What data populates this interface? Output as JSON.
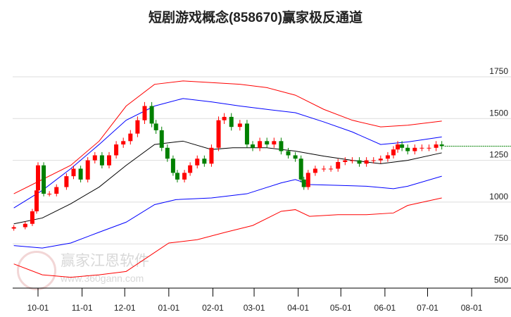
{
  "title": "短剧游戏概念(858670)赢家极反通道",
  "watermark": {
    "text": "赢家江恩软件",
    "url": "www.360gann.com",
    "seal": "江赢恩家"
  },
  "colors": {
    "up": "#ff0000",
    "down": "#008000",
    "mid": "#000000",
    "inner": "#0000ff",
    "outer": "#ff0000",
    "grid": "#dddddd"
  },
  "chart_data": {
    "type": "candlestick",
    "title": "短剧游戏概念(858670)赢家极反通道",
    "x_unit": "days since 10-01",
    "xticks": [
      {
        "label": "10-01",
        "d": 0
      },
      {
        "label": "11-01",
        "d": 31
      },
      {
        "label": "12-01",
        "d": 61
      },
      {
        "label": "01-01",
        "d": 92
      },
      {
        "label": "02-01",
        "d": 123
      },
      {
        "label": "03-01",
        "d": 152
      },
      {
        "label": "04-01",
        "d": 183
      },
      {
        "label": "05-01",
        "d": 213
      },
      {
        "label": "06-01",
        "d": 244
      },
      {
        "label": "07-01",
        "d": 274
      },
      {
        "label": "08-01",
        "d": 305
      }
    ],
    "yticks": [
      1750,
      1500,
      1250,
      1000,
      750,
      500
    ],
    "ylim": [
      490,
      1850
    ],
    "grid": true,
    "last_price": 1335,
    "closes": [
      [
        -17,
        850
      ],
      [
        -9,
        870
      ],
      [
        -4,
        945
      ],
      [
        -1,
        1070
      ],
      [
        0,
        1220
      ],
      [
        4,
        1050
      ],
      [
        8,
        1050
      ],
      [
        13,
        1090
      ],
      [
        20,
        1155
      ],
      [
        25,
        1200
      ],
      [
        30,
        1135
      ],
      [
        35,
        1250
      ],
      [
        40,
        1280
      ],
      [
        45,
        1220
      ],
      [
        50,
        1280
      ],
      [
        55,
        1345
      ],
      [
        60,
        1365
      ],
      [
        65,
        1410
      ],
      [
        70,
        1490
      ],
      [
        75,
        1575
      ],
      [
        80,
        1470
      ],
      [
        83,
        1430
      ],
      [
        87,
        1325
      ],
      [
        91,
        1260
      ],
      [
        95,
        1175
      ],
      [
        98,
        1135
      ],
      [
        103,
        1175
      ],
      [
        107,
        1220
      ],
      [
        112,
        1260
      ],
      [
        117,
        1230
      ],
      [
        122,
        1325
      ],
      [
        127,
        1490
      ],
      [
        131,
        1510
      ],
      [
        136,
        1450
      ],
      [
        142,
        1470
      ],
      [
        147,
        1345
      ],
      [
        151,
        1325
      ],
      [
        156,
        1365
      ],
      [
        161,
        1345
      ],
      [
        166,
        1365
      ],
      [
        171,
        1305
      ],
      [
        176,
        1280
      ],
      [
        181,
        1260
      ],
      [
        185,
        1135
      ],
      [
        187,
        1090
      ],
      [
        190,
        1175
      ],
      [
        195,
        1200
      ],
      [
        201,
        1200
      ],
      [
        206,
        1200
      ],
      [
        211,
        1240
      ],
      [
        216,
        1250
      ],
      [
        221,
        1250
      ],
      [
        226,
        1230
      ],
      [
        231,
        1250
      ],
      [
        236,
        1250
      ],
      [
        241,
        1260
      ],
      [
        246,
        1280
      ],
      [
        250,
        1315
      ],
      [
        253,
        1345
      ],
      [
        256,
        1325
      ],
      [
        260,
        1305
      ],
      [
        265,
        1325
      ],
      [
        270,
        1325
      ],
      [
        275,
        1325
      ],
      [
        280,
        1345
      ],
      [
        284,
        1335
      ]
    ],
    "bands": [
      {
        "name": "outer-upper",
        "color": "outer",
        "points": [
          [
            -17,
            1050
          ],
          [
            3,
            1135
          ],
          [
            23,
            1220
          ],
          [
            43,
            1365
          ],
          [
            62,
            1575
          ],
          [
            82,
            1705
          ],
          [
            102,
            1725
          ],
          [
            122,
            1715
          ],
          [
            142,
            1705
          ],
          [
            161,
            1685
          ],
          [
            181,
            1640
          ],
          [
            201,
            1555
          ],
          [
            221,
            1490
          ],
          [
            241,
            1450
          ],
          [
            260,
            1460
          ],
          [
            284,
            1485
          ]
        ]
      },
      {
        "name": "inner-upper",
        "color": "inner",
        "points": [
          [
            -17,
            965
          ],
          [
            3,
            1070
          ],
          [
            23,
            1200
          ],
          [
            43,
            1345
          ],
          [
            62,
            1490
          ],
          [
            82,
            1575
          ],
          [
            102,
            1620
          ],
          [
            122,
            1600
          ],
          [
            142,
            1575
          ],
          [
            161,
            1555
          ],
          [
            181,
            1535
          ],
          [
            201,
            1480
          ],
          [
            221,
            1420
          ],
          [
            241,
            1345
          ],
          [
            260,
            1360
          ],
          [
            284,
            1390
          ]
        ]
      },
      {
        "name": "middle",
        "color": "mid",
        "points": [
          [
            -17,
            870
          ],
          [
            3,
            905
          ],
          [
            23,
            990
          ],
          [
            43,
            1090
          ],
          [
            62,
            1220
          ],
          [
            82,
            1345
          ],
          [
            102,
            1365
          ],
          [
            122,
            1315
          ],
          [
            137,
            1325
          ],
          [
            161,
            1325
          ],
          [
            181,
            1305
          ],
          [
            201,
            1275
          ],
          [
            221,
            1250
          ],
          [
            241,
            1230
          ],
          [
            260,
            1250
          ],
          [
            284,
            1295
          ]
        ]
      },
      {
        "name": "inner-lower",
        "color": "inner",
        "points": [
          [
            -17,
            740
          ],
          [
            3,
            725
          ],
          [
            23,
            755
          ],
          [
            43,
            820
          ],
          [
            62,
            880
          ],
          [
            82,
            985
          ],
          [
            97,
            1015
          ],
          [
            122,
            1025
          ],
          [
            147,
            1050
          ],
          [
            171,
            1115
          ],
          [
            181,
            1135
          ],
          [
            191,
            1105
          ],
          [
            211,
            1100
          ],
          [
            231,
            1095
          ],
          [
            250,
            1080
          ],
          [
            260,
            1095
          ],
          [
            284,
            1155
          ]
        ]
      },
      {
        "name": "outer-lower",
        "color": "outer",
        "points": [
          [
            -17,
            630
          ],
          [
            3,
            565
          ],
          [
            23,
            550
          ],
          [
            43,
            565
          ],
          [
            62,
            585
          ],
          [
            77,
            670
          ],
          [
            92,
            755
          ],
          [
            112,
            775
          ],
          [
            132,
            820
          ],
          [
            151,
            860
          ],
          [
            171,
            945
          ],
          [
            181,
            955
          ],
          [
            191,
            915
          ],
          [
            211,
            925
          ],
          [
            231,
            925
          ],
          [
            250,
            935
          ],
          [
            260,
            980
          ],
          [
            284,
            1025
          ]
        ]
      }
    ]
  }
}
